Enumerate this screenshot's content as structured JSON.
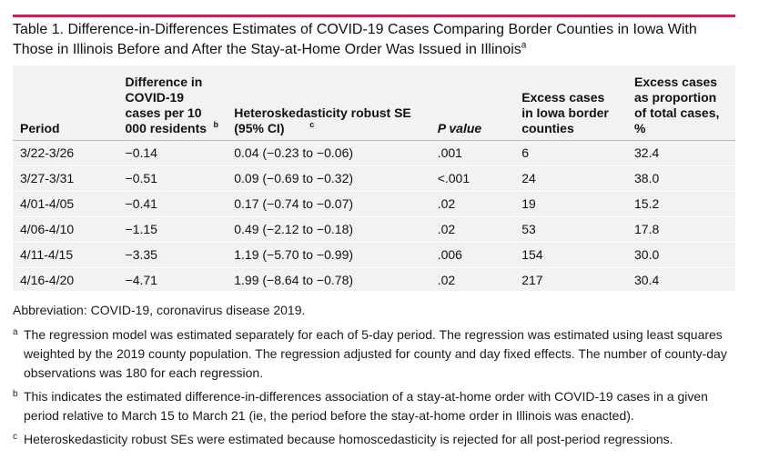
{
  "caption": {
    "text": "Table 1. Difference-in-Differences Estimates of COVID-19 Cases Comparing Border Counties in Iowa With Those in Illinois Before and After the Stay-at-Home Order Was Issued in Illinois",
    "sup": "a"
  },
  "table": {
    "headers": [
      {
        "text": "Period",
        "sup": ""
      },
      {
        "text": "Difference in COVID-19 cases per 10 000 residents",
        "sup": "b"
      },
      {
        "text": "Heteroskedasticity robust SE (95% CI)",
        "sup": "c"
      },
      {
        "text": "P value",
        "sup": ""
      },
      {
        "text": "Excess cases in Iowa border counties",
        "sup": ""
      },
      {
        "text": "Excess cases as proportion of total cases, %",
        "sup": ""
      }
    ],
    "rows": [
      [
        "3/22-3/26",
        "−0.14",
        "0.04 (−0.23 to −0.06)",
        ".001",
        "6",
        "32.4"
      ],
      [
        "3/27-3/31",
        "−0.51",
        "0.09 (−0.69 to −0.32)",
        "<.001",
        "24",
        "38.0"
      ],
      [
        "4/01-4/05",
        "−0.41",
        "0.17 (−0.74 to −0.07)",
        ".02",
        "19",
        "15.2"
      ],
      [
        "4/06-4/10",
        "−1.15",
        "0.49 (−2.12 to −0.18)",
        ".02",
        "53",
        "17.8"
      ],
      [
        "4/11-4/15",
        "−3.35",
        "1.19 (−5.70 to −0.99)",
        ".006",
        "154",
        "30.0"
      ],
      [
        "4/16-4/20",
        "−4.71",
        "1.99 (−8.64 to −0.78)",
        ".02",
        "217",
        "30.4"
      ]
    ]
  },
  "notes": {
    "abbreviation": "Abbreviation: COVID-19, coronavirus disease 2019.",
    "footnotes": [
      {
        "mark": "a",
        "text": "The regression model was estimated separately for each of 5-day period. The regression was estimated using least squares weighted by the 2019 county population. The regression adjusted for county and day fixed effects. The number of county-day observations was 180 for each regression."
      },
      {
        "mark": "b",
        "text": "This indicates the estimated difference-in-differences association of a stay-at-home order with COVID-19 cases in a given period relative to March 15 to March 21 (ie, the period before the stay-at-home order in Illinois was enacted)."
      },
      {
        "mark": "c",
        "text": "Heteroskedasticity robust SEs were estimated because homoscedasticity is rejected for all post-period regressions."
      }
    ]
  },
  "colors": {
    "accent_rule": "#d6145f",
    "table_background": "#f1f2f2"
  }
}
